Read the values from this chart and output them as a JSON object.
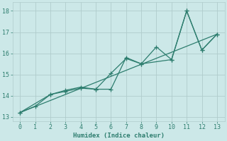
{
  "xlabel": "Humidex (Indice chaleur)",
  "ylabel": "",
  "background_color": "#cce8e8",
  "grid_color": "#b0cccc",
  "line_color": "#2d7d6e",
  "xlim": [
    -0.5,
    13.5
  ],
  "ylim": [
    12.8,
    18.4
  ],
  "yticks": [
    13,
    14,
    15,
    16,
    17,
    18
  ],
  "xticks": [
    0,
    1,
    2,
    3,
    4,
    5,
    6,
    7,
    8,
    9,
    10,
    11,
    12,
    13
  ],
  "series1_x": [
    0,
    1,
    2,
    3,
    4,
    5,
    6,
    7,
    8,
    9,
    10,
    11,
    12,
    13
  ],
  "series1_y": [
    13.2,
    13.5,
    14.05,
    14.2,
    14.35,
    14.3,
    14.3,
    15.8,
    15.5,
    16.3,
    15.7,
    18.0,
    16.15,
    16.9
  ],
  "series2_x": [
    0,
    2,
    3,
    4,
    5,
    6,
    7,
    8,
    10,
    11,
    12,
    13
  ],
  "series2_y": [
    13.2,
    14.05,
    14.25,
    14.4,
    14.3,
    15.05,
    15.75,
    15.5,
    15.7,
    18.0,
    16.15,
    16.9
  ],
  "trend_x": [
    0,
    13
  ],
  "trend_y": [
    13.2,
    16.9
  ],
  "marker_size": 4,
  "line_width": 0.9
}
